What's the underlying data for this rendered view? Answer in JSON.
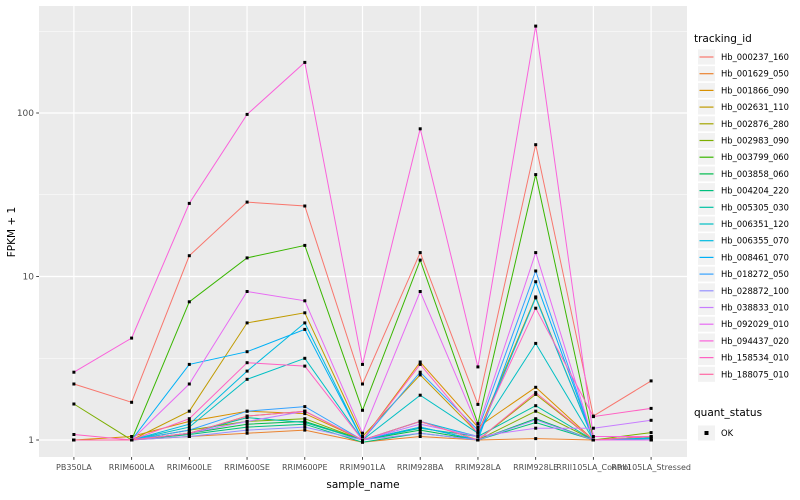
{
  "chart_data": {
    "type": "line",
    "title": "",
    "xlabel": "sample_name",
    "ylabel": "FPKM + 1",
    "yscale": "log10",
    "ylim": [
      0.79,
      450
    ],
    "y_major_ticks": [
      1,
      10,
      100
    ],
    "y_minor_ticks": [
      3.162,
      31.62,
      316.2
    ],
    "grid": "on",
    "legend_position": "right",
    "legend_title": "tracking_id",
    "legend2_title": "quant_status",
    "legend2_items": [
      {
        "label": "OK",
        "marker": "black-square"
      }
    ],
    "categories": [
      "PB350LA",
      "RRIM600LA",
      "RRIM600LE",
      "RRIM600SE",
      "RRIM600PE",
      "RRIM901LA",
      "RRIM928BA",
      "RRIM928LA",
      "RRIM928LE",
      "RRII105LA_Control",
      "RRII105LA_Stressed"
    ],
    "series": [
      {
        "name": "Hb_000237_160",
        "color": "#F8766D",
        "values": [
          2.2,
          1.7,
          13.4,
          28.5,
          27.0,
          2.2,
          14.0,
          1.65,
          64,
          1.4,
          2.3
        ]
      },
      {
        "name": "Hb_001629_050",
        "color": "#EA8331",
        "values": [
          1.0,
          1.0,
          1.05,
          1.1,
          1.15,
          0.97,
          1.05,
          1.0,
          1.02,
          1.0,
          1.05
        ]
      },
      {
        "name": "Hb_001866_090",
        "color": "#D89000",
        "values": [
          1.0,
          1.05,
          1.3,
          1.5,
          1.45,
          1.0,
          3.0,
          1.2,
          2.1,
          1.0,
          1.05
        ]
      },
      {
        "name": "Hb_002631_110",
        "color": "#C09B00",
        "values": [
          1.0,
          1.0,
          1.5,
          5.2,
          6.0,
          1.05,
          2.5,
          1.1,
          7.5,
          1.0,
          1.0
        ]
      },
      {
        "name": "Hb_002876_280",
        "color": "#A3A500",
        "values": [
          1.0,
          1.0,
          1.1,
          1.4,
          1.5,
          1.0,
          1.3,
          1.0,
          1.9,
          1.0,
          1.0
        ]
      },
      {
        "name": "Hb_002983_090",
        "color": "#7CAE00",
        "values": [
          1.66,
          1.0,
          1.15,
          1.3,
          1.35,
          1.0,
          1.2,
          1.0,
          1.5,
          1.0,
          1.11
        ]
      },
      {
        "name": "Hb_003799_060",
        "color": "#39B600",
        "values": [
          1.0,
          1.0,
          7.0,
          13.0,
          15.5,
          1.52,
          12.6,
          1.26,
          42,
          1.0,
          1.05
        ]
      },
      {
        "name": "Hb_003858_060",
        "color": "#00BB4E",
        "values": [
          1.0,
          1.0,
          1.1,
          1.25,
          1.3,
          1.0,
          1.15,
          1.0,
          1.35,
          1.0,
          1.0
        ]
      },
      {
        "name": "Hb_004204_220",
        "color": "#00BF7D",
        "values": [
          1.0,
          1.0,
          1.08,
          1.2,
          1.25,
          0.97,
          1.1,
          1.0,
          1.28,
          1.0,
          1.0
        ]
      },
      {
        "name": "Hb_005305_030",
        "color": "#00C1A3",
        "values": [
          1.0,
          1.0,
          1.1,
          1.37,
          1.28,
          1.0,
          1.18,
          1.05,
          1.62,
          1.0,
          1.02
        ]
      },
      {
        "name": "Hb_006351_120",
        "color": "#00BFC4",
        "values": [
          1.0,
          1.0,
          1.2,
          2.35,
          3.16,
          1.0,
          1.88,
          1.1,
          3.9,
          1.0,
          1.03
        ]
      },
      {
        "name": "Hb_006355_070",
        "color": "#00BAE0",
        "values": [
          1.0,
          1.0,
          1.25,
          2.64,
          5.2,
          1.0,
          1.3,
          1.05,
          7.4,
          1.0,
          1.02
        ]
      },
      {
        "name": "Hb_008461_070",
        "color": "#00B0F6",
        "values": [
          1.0,
          1.0,
          2.9,
          3.47,
          4.75,
          1.0,
          1.2,
          1.0,
          9.3,
          1.0,
          1.0
        ]
      },
      {
        "name": "Hb_018272_050",
        "color": "#35A2FF",
        "values": [
          1.0,
          1.0,
          1.15,
          1.5,
          1.6,
          1.0,
          2.6,
          1.15,
          10.8,
          1.0,
          1.0
        ]
      },
      {
        "name": "Hb_028872_100",
        "color": "#9590FF",
        "values": [
          1.0,
          1.0,
          1.05,
          1.15,
          1.2,
          1.0,
          1.1,
          1.0,
          1.33,
          1.0,
          1.0
        ]
      },
      {
        "name": "Hb_038833_010",
        "color": "#C77CFF",
        "values": [
          1.0,
          1.0,
          1.1,
          1.3,
          1.5,
          1.0,
          1.25,
          1.05,
          1.18,
          1.18,
          1.32
        ]
      },
      {
        "name": "Hb_092029_010",
        "color": "#E76BF3",
        "values": [
          1.0,
          1.0,
          2.2,
          8.1,
          7.1,
          1.1,
          8.1,
          1.2,
          14.0,
          1.0,
          1.0
        ]
      },
      {
        "name": "Hb_094437_020",
        "color": "#FA62DB",
        "values": [
          2.6,
          4.2,
          28,
          98,
          204,
          2.9,
          80,
          2.8,
          340,
          1.05,
          1.05
        ]
      },
      {
        "name": "Hb_158534_010",
        "color": "#FF61C3",
        "values": [
          1.08,
          1.0,
          1.35,
          2.97,
          2.83,
          1.0,
          2.9,
          1.1,
          6.4,
          1.39,
          1.56
        ]
      },
      {
        "name": "Hb_188075_010",
        "color": "#FF67A4",
        "values": [
          1.0,
          1.0,
          1.1,
          1.4,
          1.5,
          1.0,
          1.3,
          1.0,
          1.95,
          1.0,
          1.05
        ]
      }
    ],
    "colors": {
      "panel_bg": "#EBEBEB",
      "grid": "#FFFFFF",
      "tick_label": "#4D4D4D",
      "axis_title": "#000000",
      "point": "#000000",
      "legend_key_bg": "#F2F2F2",
      "background": "#FFFFFF"
    }
  }
}
